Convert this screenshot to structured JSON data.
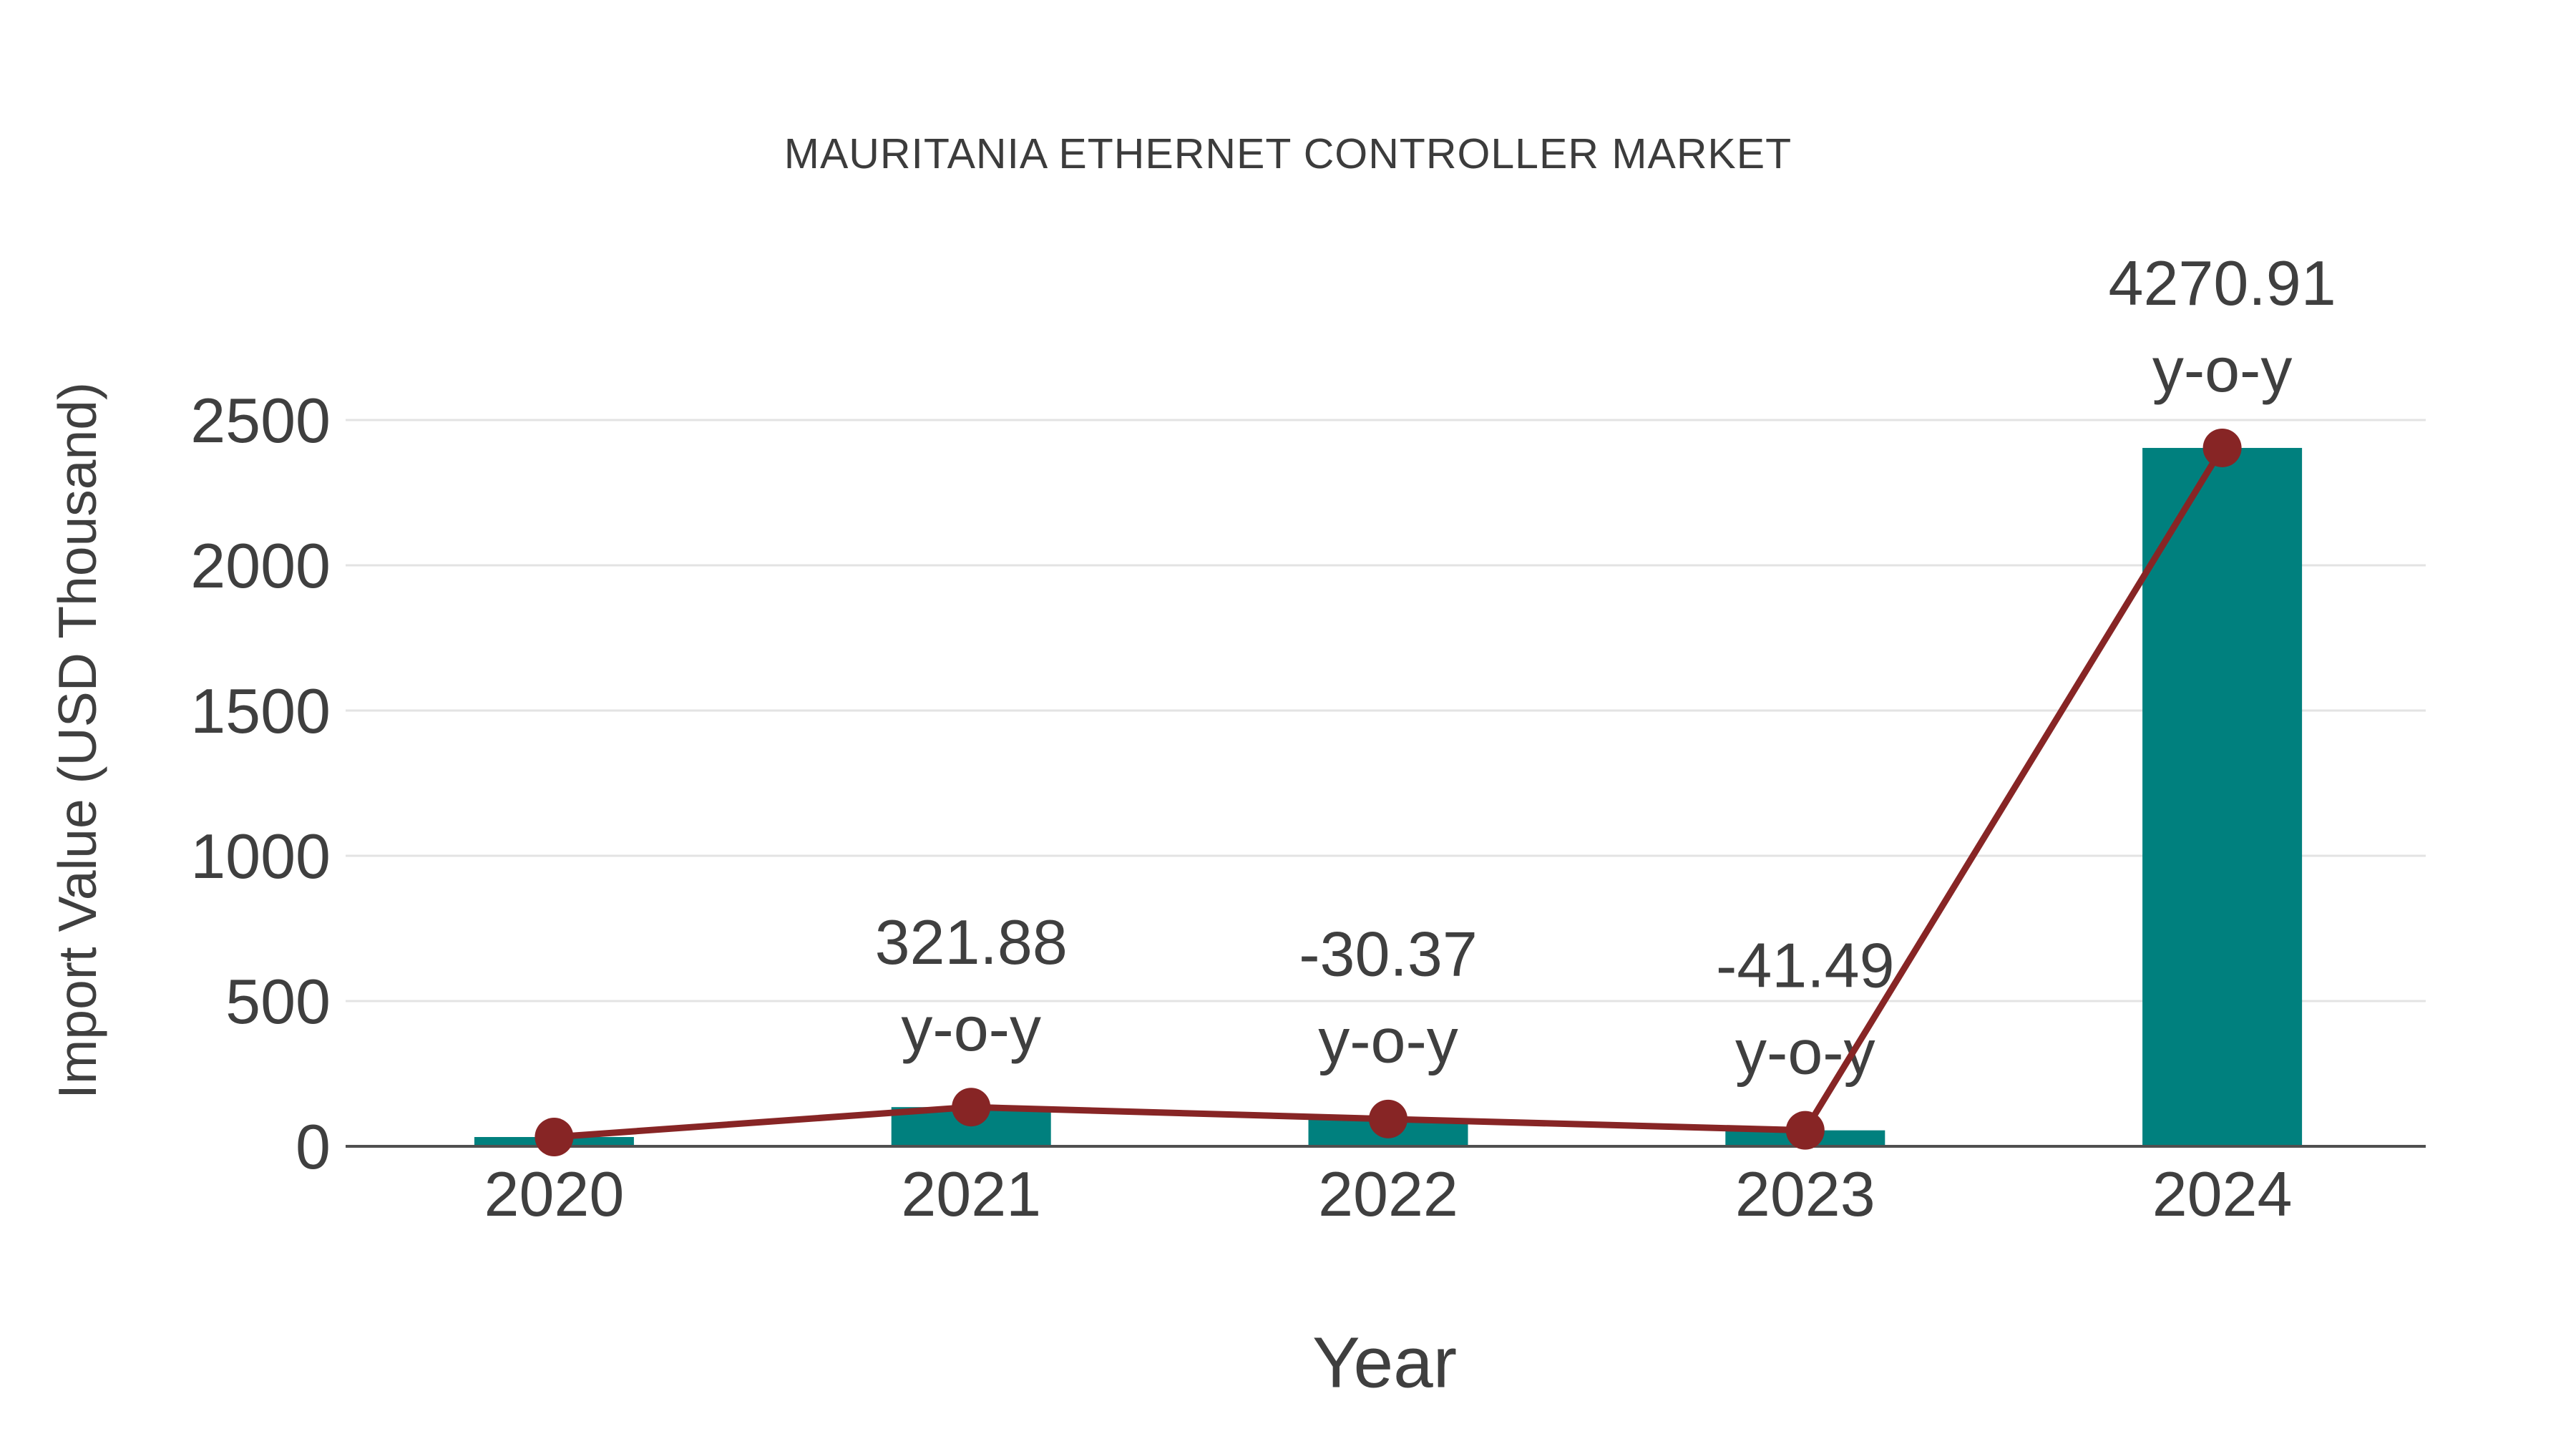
{
  "page": {
    "background": "#FFFFFF"
  },
  "chart_data": {
    "type": "bar",
    "title": "MAURITANIA ETHERNET CONTROLLER MARKET",
    "xlabel": "Year",
    "ylabel": "Import Value (USD Thousand)",
    "categories": [
      "2020",
      "2021",
      "2022",
      "2023",
      "2024"
    ],
    "series": [
      {
        "name": "import-value-bars",
        "type": "bar",
        "values": [
          32,
          135,
          94,
          55,
          2404
        ],
        "color": "#00807E"
      },
      {
        "name": "import-value-trend-line",
        "type": "line",
        "values": [
          32,
          135,
          94,
          55,
          2404
        ],
        "color": "#872525",
        "point_labels": [
          "",
          "321.88",
          "-30.37",
          "-41.49",
          "4270.91"
        ],
        "point_label_suffix": "y-o-y"
      }
    ],
    "ylim": [
      0,
      2700
    ],
    "yticks": [
      0,
      500,
      1000,
      1500,
      2000,
      2500
    ],
    "grid": true,
    "legend": false,
    "colors": {
      "grid": "#E3E3E3",
      "axis_line": "#4F4F4F",
      "text": "#3F3F3F"
    }
  }
}
